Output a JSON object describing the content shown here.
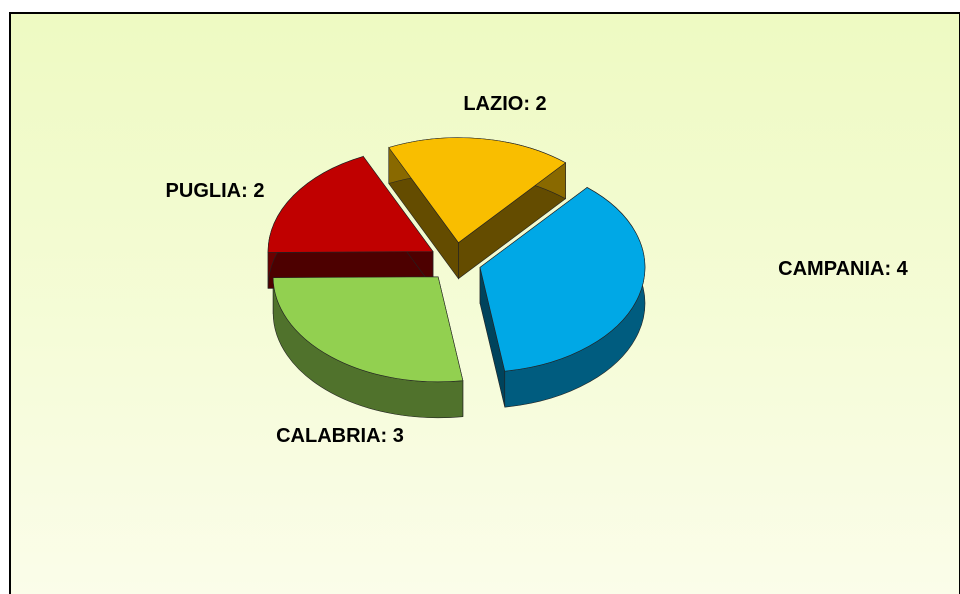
{
  "chart_data": {
    "type": "pie",
    "categories": [
      "LAZIO",
      "CAMPANIA",
      "CALABRIA",
      "PUGLIA"
    ],
    "values": [
      2,
      4,
      3,
      2
    ],
    "value_labels": [
      ": 2",
      ": 4",
      ": 3",
      ": 2"
    ],
    "colors": [
      "#f9be00",
      "#00a8e6",
      "#92d050",
      "#c00000"
    ]
  }
}
